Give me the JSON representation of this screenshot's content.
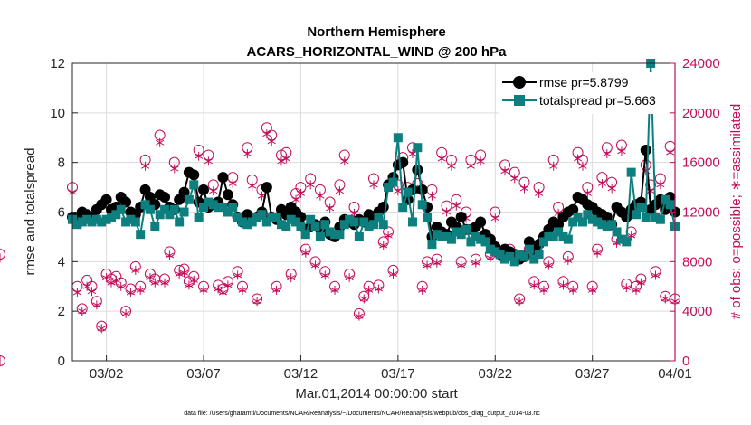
{
  "chart_data": {
    "type": "line",
    "title": [
      "Northern Hemisphere",
      "ACARS_HORIZONTAL_WIND @ 200 hPa"
    ],
    "xlabel": "Mar.01,2014 00:00:00 start",
    "ylabel": "rmse and totalspread",
    "ylabel_right": "# of obs: o=possible; ∗=assimilated",
    "xlim": [
      0.25,
      31.25
    ],
    "ylim": [
      0,
      12
    ],
    "ylim_right": [
      0,
      24000
    ],
    "x_ticks": [
      {
        "x": 2,
        "label": "03/02"
      },
      {
        "x": 7,
        "label": "03/07"
      },
      {
        "x": 12,
        "label": "03/12"
      },
      {
        "x": 17,
        "label": "03/17"
      },
      {
        "x": 22,
        "label": "03/22"
      },
      {
        "x": 27,
        "label": "03/27"
      },
      {
        "x": 31.25,
        "label": "04/01"
      }
    ],
    "y_ticks": [
      "0",
      "2",
      "4",
      "6",
      "8",
      "10",
      "12"
    ],
    "y_ticks_right": [
      "0",
      "4000",
      "8000",
      "12000",
      "16000",
      "20000",
      "24000"
    ],
    "x": [
      0.25,
      0.5,
      0.75,
      1.0,
      1.25,
      1.5,
      1.75,
      2.0,
      2.25,
      2.5,
      2.75,
      3.0,
      3.25,
      3.5,
      3.75,
      4.0,
      4.25,
      4.5,
      4.75,
      5.0,
      5.25,
      5.5,
      5.75,
      6.0,
      6.25,
      6.5,
      6.75,
      7.0,
      7.25,
      7.5,
      7.75,
      8.0,
      8.25,
      8.5,
      8.75,
      9.0,
      9.25,
      9.5,
      9.75,
      10.0,
      10.25,
      10.5,
      10.75,
      11.0,
      11.25,
      11.5,
      11.75,
      12.0,
      12.25,
      12.5,
      12.75,
      13.0,
      13.25,
      13.5,
      13.75,
      14.0,
      14.25,
      14.5,
      14.75,
      15.0,
      15.25,
      15.5,
      15.75,
      16.0,
      16.25,
      16.5,
      16.75,
      17.0,
      17.25,
      17.5,
      17.75,
      18.0,
      18.25,
      18.5,
      18.75,
      19.0,
      19.25,
      19.5,
      19.75,
      20.0,
      20.25,
      20.5,
      20.75,
      21.0,
      21.25,
      21.5,
      21.75,
      22.0,
      22.25,
      22.5,
      22.75,
      23.0,
      23.25,
      23.5,
      23.75,
      24.0,
      24.25,
      24.5,
      24.75,
      25.0,
      25.25,
      25.5,
      25.75,
      26.0,
      26.25,
      26.5,
      26.75,
      27.0,
      27.25,
      27.5,
      27.75,
      28.0,
      28.25,
      28.5,
      28.75,
      29.0,
      29.25,
      29.5,
      29.75,
      30.0,
      30.25,
      30.5,
      30.75,
      31.0,
      31.25
    ],
    "series": [
      {
        "name": "rmse pr=5.8799",
        "color": "#000000",
        "marker": "circle",
        "values": [
          5.8,
          5.7,
          6.0,
          5.9,
          5.8,
          6.1,
          6.3,
          6.5,
          6.1,
          6.2,
          6.6,
          6.4,
          6.0,
          5.9,
          6.2,
          6.9,
          6.6,
          6.3,
          6.7,
          6.6,
          6.2,
          6.1,
          6.5,
          6.8,
          7.6,
          7.5,
          6.4,
          6.9,
          6.2,
          6.3,
          6.4,
          7.4,
          6.7,
          6.3,
          5.8,
          5.6,
          5.9,
          5.7,
          5.8,
          6.0,
          7.0,
          5.8,
          5.7,
          6.1,
          5.9,
          6.2,
          6.0,
          5.8,
          5.3,
          5.4,
          5.5,
          5.3,
          5.6,
          5.1,
          5.0,
          5.4,
          5.7,
          5.6,
          5.5,
          5.7,
          5.6,
          5.9,
          5.7,
          6.0,
          6.2,
          7.1,
          7.4,
          7.9,
          8.0,
          6.5,
          6.9,
          7.7,
          6.9,
          6.2,
          5.0,
          5.4,
          5.2,
          5.1,
          5.6,
          5.4,
          5.8,
          5.3,
          5.3,
          5.4,
          5.6,
          5.1,
          4.9,
          4.6,
          4.3,
          4.5,
          4.4,
          4.3,
          4.1,
          4.2,
          4.8,
          4.5,
          4.7,
          5.0,
          5.3,
          5.6,
          5.5,
          5.8,
          6.0,
          6.1,
          6.6,
          6.5,
          6.3,
          6.2,
          6.0,
          5.9,
          5.8,
          5.5,
          6.2,
          6.0,
          5.8,
          6.1,
          6.3,
          6.4,
          8.5,
          6.1,
          6.3,
          6.5,
          6.1,
          6.6,
          6.0
        ]
      },
      {
        "name": "totalspread pr=5.663",
        "color": "#0e7f7f",
        "marker": "square",
        "values": [
          5.7,
          5.5,
          5.6,
          5.7,
          5.6,
          5.7,
          5.6,
          5.7,
          5.8,
          5.9,
          6.1,
          5.6,
          5.7,
          5.6,
          5.1,
          6.3,
          6.1,
          5.4,
          5.9,
          6.1,
          5.9,
          6.1,
          5.6,
          6.0,
          6.5,
          7.1,
          5.8,
          6.2,
          6.4,
          6.3,
          6.2,
          6.2,
          6.0,
          6.2,
          5.8,
          5.6,
          5.5,
          5.6,
          5.8,
          5.9,
          5.6,
          5.8,
          5.8,
          5.5,
          5.4,
          5.7,
          5.6,
          5.4,
          5.1,
          5.7,
          5.4,
          5.0,
          5.5,
          5.2,
          5.1,
          5.1,
          5.5,
          5.7,
          5.6,
          5.0,
          5.6,
          5.4,
          5.5,
          5.8,
          5.5,
          7.0,
          7.2,
          9.0,
          6.2,
          6.8,
          5.6,
          8.6,
          6.3,
          5.8,
          4.7,
          5.1,
          5.0,
          5.0,
          4.9,
          5.2,
          5.1,
          5.3,
          4.8,
          5.0,
          4.9,
          4.8,
          4.5,
          4.4,
          4.3,
          4.1,
          4.2,
          4.0,
          4.3,
          4.2,
          4.5,
          4.1,
          4.3,
          4.8,
          5.0,
          5.0,
          5.2,
          5.0,
          4.9,
          5.6,
          5.8,
          5.6,
          5.9,
          5.7,
          5.6,
          5.5,
          5.4,
          5.5,
          5.2,
          4.9,
          4.8,
          7.6,
          5.9,
          6.2,
          5.8,
          12.0,
          5.8,
          5.7,
          6.5,
          6.3,
          5.4
        ]
      }
    ],
    "obs_possible": [
      14000,
      6000,
      4200,
      6500,
      6000,
      4800,
      2800,
      7000,
      6600,
      6800,
      6300,
      4000,
      5800,
      7600,
      6000,
      16200,
      7000,
      6600,
      18200,
      6600,
      8800,
      16000,
      7300,
      7400,
      6400,
      6800,
      17000,
      6000,
      16600,
      14200,
      6100,
      5800,
      6400,
      14800,
      7200,
      6000,
      17200,
      14600,
      5000,
      13800,
      18800,
      18200,
      6000,
      16600,
      16800,
      7000,
      13500,
      14000,
      9000,
      14700,
      8000,
      13800,
      7200,
      12800,
      6000,
      14200,
      16600,
      7000,
      12400,
      3800,
      5200,
      6000,
      14700,
      6100,
      9600,
      10400,
      7300,
      14200,
      16400,
      14000,
      17200,
      14300,
      6000,
      8000,
      13800,
      8200,
      16800,
      12500,
      16200,
      13000,
      8000,
      12000,
      16200,
      8200,
      16600,
      10000,
      8600,
      12000,
      8700,
      15800,
      9000,
      15200,
      5000,
      14400,
      9000,
      6400,
      14000,
      6000,
      8000,
      16200,
      12400,
      6400,
      8400,
      6000,
      16800,
      16200,
      14000,
      6000,
      9000,
      14800,
      17200,
      14400,
      9800,
      17400,
      6200,
      10400,
      6000,
      6600,
      15800,
      14200,
      7200,
      14700,
      5200,
      17300,
      5000,
      8600,
      0
    ],
    "obs_assimilated": [
      13600,
      5500,
      4000,
      6000,
      5600,
      4500,
      2600,
      6700,
      6300,
      6500,
      6000,
      3800,
      5500,
      7300,
      5700,
      15700,
      6700,
      6300,
      17600,
      6300,
      8500,
      15500,
      7000,
      7100,
      6100,
      6500,
      16500,
      5700,
      16100,
      13700,
      5800,
      5500,
      6100,
      14300,
      6900,
      5700,
      16700,
      14100,
      4800,
      13300,
      18300,
      17700,
      5700,
      16100,
      16300,
      6700,
      13000,
      13500,
      8700,
      14200,
      7700,
      13300,
      6900,
      12300,
      5700,
      13700,
      16100,
      6700,
      11900,
      3600,
      5000,
      5700,
      14200,
      5800,
      9300,
      10100,
      7000,
      13700,
      15900,
      13500,
      16700,
      13800,
      5700,
      7700,
      13300,
      7900,
      16300,
      12000,
      15700,
      12500,
      7700,
      11500,
      15700,
      7900,
      16100,
      9700,
      8300,
      11500,
      8400,
      15300,
      8700,
      14700,
      4800,
      13900,
      8700,
      6100,
      13500,
      5700,
      7700,
      15700,
      11900,
      6100,
      8100,
      5700,
      16300,
      15700,
      13500,
      5700,
      8700,
      14300,
      16700,
      13900,
      9500,
      16900,
      5900,
      10100,
      5700,
      6300,
      15300,
      13700,
      6900,
      14200,
      5000,
      16800,
      4800,
      8300,
      0
    ]
  },
  "footer": "data file: /Users/gharamti/Documents/NCAR/Reanalysis/~/Documents/NCAR/Reanalysis/webpub/obs_diag_output_2014-03.nc",
  "colors": {
    "right_axis": "#c20e5a",
    "rmse": "#000000",
    "spread": "#0e7f7f"
  }
}
